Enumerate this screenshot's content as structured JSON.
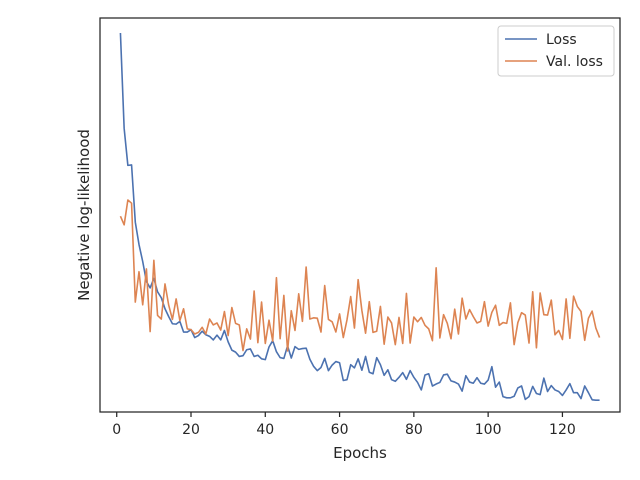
{
  "chart_data": {
    "type": "line",
    "title": "",
    "xlabel": "Epochs",
    "ylabel": "Negative log-likelihood",
    "xlim": [
      -4.5,
      135.5
    ],
    "ylim": [
      0.0,
      1.0
    ],
    "y_tick_labels_shown": false,
    "x_ticks": [
      0,
      20,
      40,
      60,
      80,
      100,
      120
    ],
    "grid": false,
    "legend_position": "upper right",
    "series": [
      {
        "name": "Loss",
        "color": "#4c72b0",
        "x": [
          1,
          2,
          3,
          4,
          5,
          6,
          7,
          8,
          9,
          10,
          11,
          12,
          13,
          14,
          15,
          16,
          17,
          18,
          19,
          20,
          21,
          22,
          23,
          24,
          25,
          26,
          27,
          28,
          29,
          30,
          31,
          32,
          33,
          34,
          35,
          36,
          37,
          38,
          39,
          40,
          41,
          42,
          43,
          44,
          45,
          46,
          47,
          48,
          49,
          50,
          51,
          52,
          53,
          54,
          55,
          56,
          57,
          58,
          59,
          60,
          61,
          62,
          63,
          64,
          65,
          66,
          67,
          68,
          69,
          70,
          71,
          72,
          73,
          74,
          75,
          76,
          77,
          78,
          79,
          80,
          81,
          82,
          83,
          84,
          85,
          86,
          87,
          88,
          89,
          90,
          91,
          92,
          93,
          94,
          95,
          96,
          97,
          98,
          99,
          100,
          101,
          102,
          103,
          104,
          105,
          106,
          107,
          108,
          109,
          110,
          111,
          112,
          113,
          114,
          115,
          116,
          117,
          118,
          119,
          120,
          121,
          122,
          123,
          124,
          125,
          126,
          127,
          128,
          129,
          130
        ],
        "y": [
          0.962,
          0.72,
          0.626,
          0.627,
          0.482,
          0.425,
          0.382,
          0.331,
          0.315,
          0.339,
          0.305,
          0.29,
          0.262,
          0.242,
          0.224,
          0.223,
          0.23,
          0.203,
          0.203,
          0.209,
          0.189,
          0.194,
          0.205,
          0.196,
          0.192,
          0.183,
          0.195,
          0.183,
          0.207,
          0.178,
          0.157,
          0.152,
          0.141,
          0.143,
          0.158,
          0.16,
          0.141,
          0.144,
          0.135,
          0.133,
          0.165,
          0.181,
          0.153,
          0.138,
          0.136,
          0.168,
          0.137,
          0.166,
          0.159,
          0.161,
          0.162,
          0.134,
          0.116,
          0.105,
          0.113,
          0.136,
          0.105,
          0.119,
          0.128,
          0.125,
          0.08,
          0.082,
          0.12,
          0.112,
          0.135,
          0.106,
          0.141,
          0.101,
          0.097,
          0.138,
          0.12,
          0.093,
          0.107,
          0.082,
          0.078,
          0.088,
          0.1,
          0.083,
          0.105,
          0.088,
          0.075,
          0.056,
          0.094,
          0.097,
          0.066,
          0.071,
          0.075,
          0.094,
          0.096,
          0.079,
          0.076,
          0.071,
          0.053,
          0.092,
          0.076,
          0.073,
          0.087,
          0.073,
          0.071,
          0.081,
          0.115,
          0.063,
          0.076,
          0.039,
          0.036,
          0.036,
          0.04,
          0.061,
          0.066,
          0.032,
          0.039,
          0.065,
          0.047,
          0.044,
          0.086,
          0.052,
          0.067,
          0.056,
          0.052,
          0.042,
          0.056,
          0.072,
          0.049,
          0.049,
          0.034,
          0.066,
          0.049,
          0.031,
          0.03,
          0.03
        ]
      },
      {
        "name": "Val. loss",
        "color": "#dd8452",
        "x": [
          1,
          2,
          3,
          4,
          5,
          6,
          7,
          8,
          9,
          10,
          11,
          12,
          13,
          14,
          15,
          16,
          17,
          18,
          19,
          20,
          21,
          22,
          23,
          24,
          25,
          26,
          27,
          28,
          29,
          30,
          31,
          32,
          33,
          34,
          35,
          36,
          37,
          38,
          39,
          40,
          41,
          42,
          43,
          44,
          45,
          46,
          47,
          48,
          49,
          50,
          51,
          52,
          53,
          54,
          55,
          56,
          57,
          58,
          59,
          60,
          61,
          62,
          63,
          64,
          65,
          66,
          67,
          68,
          69,
          70,
          71,
          72,
          73,
          74,
          75,
          76,
          77,
          78,
          79,
          80,
          81,
          82,
          83,
          84,
          85,
          86,
          87,
          88,
          89,
          90,
          91,
          92,
          93,
          94,
          95,
          96,
          97,
          98,
          99,
          100,
          101,
          102,
          103,
          104,
          105,
          106,
          107,
          108,
          109,
          110,
          111,
          112,
          113,
          114,
          115,
          116,
          117,
          118,
          119,
          120,
          121,
          122,
          123,
          124,
          125,
          126,
          127,
          128,
          129,
          130
        ],
        "y": [
          0.497,
          0.475,
          0.538,
          0.53,
          0.279,
          0.356,
          0.272,
          0.363,
          0.204,
          0.385,
          0.245,
          0.236,
          0.325,
          0.271,
          0.235,
          0.287,
          0.232,
          0.262,
          0.211,
          0.209,
          0.198,
          0.202,
          0.215,
          0.198,
          0.236,
          0.221,
          0.226,
          0.208,
          0.255,
          0.194,
          0.265,
          0.225,
          0.221,
          0.156,
          0.211,
          0.185,
          0.307,
          0.176,
          0.279,
          0.174,
          0.233,
          0.18,
          0.341,
          0.186,
          0.296,
          0.155,
          0.257,
          0.207,
          0.3,
          0.23,
          0.368,
          0.236,
          0.239,
          0.238,
          0.203,
          0.321,
          0.235,
          0.229,
          0.203,
          0.249,
          0.189,
          0.234,
          0.293,
          0.213,
          0.336,
          0.258,
          0.2,
          0.28,
          0.202,
          0.205,
          0.268,
          0.172,
          0.241,
          0.226,
          0.171,
          0.24,
          0.174,
          0.301,
          0.175,
          0.241,
          0.229,
          0.24,
          0.22,
          0.211,
          0.181,
          0.366,
          0.188,
          0.247,
          0.225,
          0.186,
          0.261,
          0.198,
          0.289,
          0.236,
          0.26,
          0.242,
          0.226,
          0.23,
          0.28,
          0.218,
          0.253,
          0.271,
          0.22,
          0.227,
          0.225,
          0.277,
          0.171,
          0.227,
          0.252,
          0.246,
          0.175,
          0.305,
          0.163,
          0.302,
          0.247,
          0.246,
          0.284,
          0.196,
          0.207,
          0.184,
          0.287,
          0.187,
          0.294,
          0.268,
          0.255,
          0.182,
          0.238,
          0.256,
          0.213,
          0.189
        ]
      }
    ]
  }
}
